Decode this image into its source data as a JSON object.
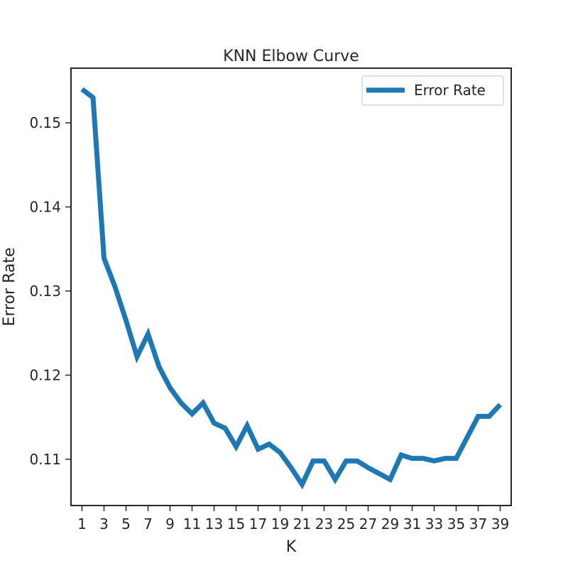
{
  "chart_data": {
    "type": "line",
    "title": "KNN Elbow Curve",
    "xlabel": "K",
    "ylabel": "Error Rate",
    "x": [
      1,
      2,
      3,
      4,
      5,
      6,
      7,
      8,
      9,
      10,
      11,
      12,
      13,
      14,
      15,
      16,
      17,
      18,
      19,
      20,
      21,
      22,
      23,
      24,
      25,
      26,
      27,
      28,
      29,
      30,
      31,
      32,
      33,
      34,
      35,
      36,
      37,
      38,
      39
    ],
    "series": [
      {
        "name": "Error Rate",
        "color": "#1f77b4",
        "values": [
          0.154,
          0.153,
          0.1339,
          0.1305,
          0.1265,
          0.1222,
          0.1249,
          0.121,
          0.1185,
          0.1167,
          0.1154,
          0.1167,
          0.1143,
          0.1137,
          0.1115,
          0.114,
          0.1112,
          0.1118,
          0.1108,
          0.109,
          0.107,
          0.1098,
          0.1098,
          0.1076,
          0.1098,
          0.1098,
          0.109,
          0.1083,
          0.1076,
          0.1105,
          0.1101,
          0.1101,
          0.1098,
          0.1101,
          0.1101,
          0.1126,
          0.1151,
          0.1151,
          0.1165
        ]
      }
    ],
    "xticks": [
      "1",
      "3",
      "5",
      "7",
      "9",
      "11",
      "13",
      "15",
      "17",
      "19",
      "21",
      "23",
      "25",
      "27",
      "29",
      "31",
      "33",
      "35",
      "37",
      "39"
    ],
    "yticks": [
      "0.11",
      "0.12",
      "0.13",
      "0.14",
      "0.15"
    ],
    "xlim": [
      0,
      40
    ],
    "ylim": [
      0.1045,
      0.1565
    ],
    "grid": false,
    "legend_position": "top-right"
  }
}
